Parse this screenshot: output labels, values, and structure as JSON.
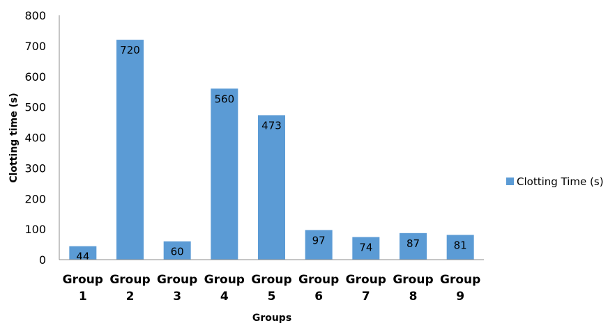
{
  "chart_data": {
    "type": "bar",
    "title": "",
    "xlabel": "Groups",
    "ylabel": "Clotting time (s)",
    "ylim": [
      0,
      800
    ],
    "yticks": [
      0,
      100,
      200,
      300,
      400,
      500,
      600,
      700,
      800
    ],
    "grid": false,
    "legend_position": "right",
    "categories": [
      [
        "Group",
        "1"
      ],
      [
        "Group",
        "2"
      ],
      [
        "Group",
        "3"
      ],
      [
        "Group",
        "4"
      ],
      [
        "Group",
        "5"
      ],
      [
        "Group",
        "6"
      ],
      [
        "Group",
        "7"
      ],
      [
        "Group",
        "8"
      ],
      [
        "Group",
        "9"
      ]
    ],
    "series": [
      {
        "name": "Clotting Time (s)",
        "color": "#5B9BD5",
        "values": [
          44,
          720,
          60,
          560,
          473,
          97,
          74,
          87,
          81
        ]
      }
    ]
  }
}
